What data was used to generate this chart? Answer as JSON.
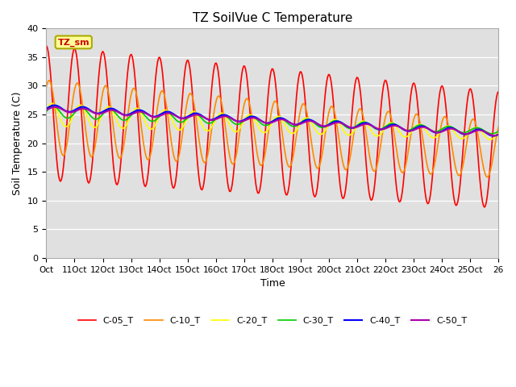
{
  "title": "TZ SoilVue C Temperature",
  "xlabel": "Time",
  "ylabel": "Soil Temperature (C)",
  "ylim": [
    0,
    40
  ],
  "yticks": [
    0,
    5,
    10,
    15,
    20,
    25,
    30,
    35,
    40
  ],
  "series_colors": {
    "C-05_T": "#ff0000",
    "C-10_T": "#ff8800",
    "C-20_T": "#ffff00",
    "C-30_T": "#00cc00",
    "C-40_T": "#0000ff",
    "C-50_T": "#aa00aa"
  },
  "xtick_labels": [
    "Oct",
    "11Oct",
    "12Oct",
    "13Oct",
    "14Oct",
    "15Oct",
    "16Oct",
    "17Oct",
    "18Oct",
    "19Oct",
    "20Oct",
    "21Oct",
    "22Oct",
    "23Oct",
    "24Oct",
    "25Oct",
    "26"
  ],
  "annotation_text": "TZ_sm",
  "annotation_color": "#cc0000",
  "annotation_bg": "#ffff99",
  "plot_bg": "#e0e0e0",
  "fig_bg": "#ffffff",
  "n_days": 16,
  "n_points": 480
}
